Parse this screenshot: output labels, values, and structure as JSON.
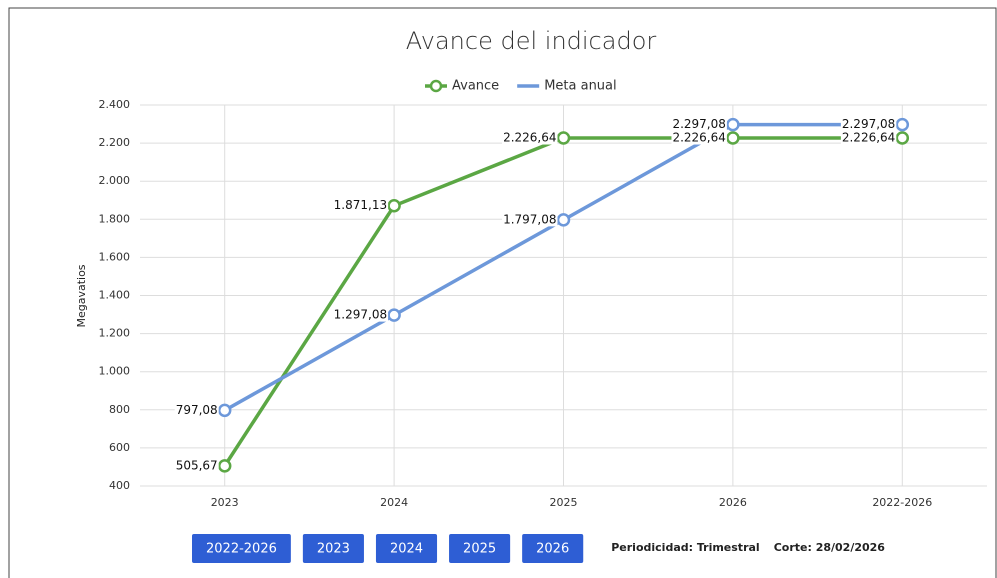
{
  "chart_data": {
    "type": "line",
    "title": "Avance del indicador",
    "ylabel": "Megavatios",
    "categories": [
      "2023",
      "2024",
      "2025",
      "2026",
      "2022-2026"
    ],
    "series": [
      {
        "name": "Avance",
        "color": "#5ba744",
        "values": [
          505.67,
          1871.13,
          2226.64,
          2226.64,
          2226.64
        ],
        "value_labels": [
          "505,67",
          "1.871,13",
          "2.226,64",
          "2.226,64",
          "2.226,64"
        ]
      },
      {
        "name": "Meta anual",
        "color": "#6d98da",
        "values": [
          797.08,
          1297.08,
          1797.08,
          2297.08,
          2297.08
        ],
        "value_labels": [
          "797,08",
          "1.297,08",
          "1.797,08",
          "2.297,08",
          "2.297,08"
        ]
      }
    ],
    "ylim": [
      400,
      2400
    ],
    "yticks": [
      400,
      600,
      800,
      {
        "value": 1000,
        "label": "1.000"
      },
      {
        "value": 1200,
        "label": "1.200"
      },
      {
        "value": 1400,
        "label": "1.400"
      },
      {
        "value": 1600,
        "label": "1.600"
      },
      {
        "value": 1800,
        "label": "1.800"
      },
      {
        "value": 2000,
        "label": "2.000"
      },
      {
        "value": 2200,
        "label": "2.200"
      },
      {
        "value": 2400,
        "label": "2.400"
      }
    ],
    "grid": true,
    "legend": "top"
  },
  "buttons": [
    "2022-2026",
    "2023",
    "2024",
    "2025",
    "2026"
  ],
  "footer": {
    "periodicity": "Periodicidad: Trimestral",
    "cutoff": "Corte: 28/02/2026"
  }
}
